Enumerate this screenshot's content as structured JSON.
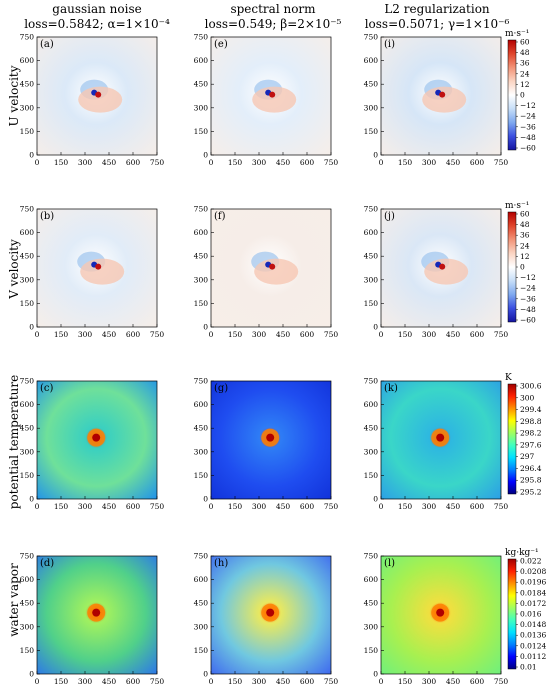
{
  "columns": [
    {
      "method": "gaussian noise",
      "loss": "loss=0.5842; α=1×10⁻⁴"
    },
    {
      "method": "spectral norm",
      "loss": "loss=0.549; β=2×10⁻⁵"
    },
    {
      "method": "L2 regularization",
      "loss": "loss=0.5071; γ=1×10⁻⁶"
    }
  ],
  "rows": [
    {
      "label": "U velocity",
      "unit": "m·s⁻¹",
      "panels": [
        "(a)",
        "(e)",
        "(i)"
      ],
      "colorbar_ticks": [
        "60",
        "48",
        "36",
        "24",
        "12",
        "0",
        "−12",
        "−24",
        "−36",
        "−48",
        "−60"
      ],
      "colormap": "diverging"
    },
    {
      "label": "V velocity",
      "unit": "m·s⁻¹",
      "panels": [
        "(b)",
        "(f)",
        "(j)"
      ],
      "colorbar_ticks": [
        "60",
        "48",
        "36",
        "24",
        "12",
        "0",
        "−12",
        "−24",
        "−36",
        "−48",
        "−60"
      ],
      "colormap": "diverging"
    },
    {
      "label": "potential temperature",
      "unit": "K",
      "panels": [
        "(c)",
        "(g)",
        "(k)"
      ],
      "colorbar_ticks": [
        "300.6",
        "300",
        "299.4",
        "298.8",
        "298.2",
        "297.6",
        "297",
        "296.4",
        "295.8",
        "295.2"
      ],
      "colormap": "jet"
    },
    {
      "label": "water vapor",
      "unit": "kg·kg⁻¹",
      "panels": [
        "(d)",
        "(h)",
        "(l)"
      ],
      "colorbar_ticks": [
        "0.022",
        "0.0208",
        "0.0196",
        "0.0184",
        "0.0172",
        "0.016",
        "0.0148",
        "0.0136",
        "0.0124",
        "0.0112",
        "0.01"
      ],
      "colormap": "jet"
    }
  ],
  "chart_data": {
    "type": "heatmap",
    "layout": "4 rows x 3 columns of 2-D field maps with one colorbar per row",
    "x_ticks": [
      "0",
      "150",
      "300",
      "450",
      "600",
      "750"
    ],
    "y_ticks": [
      "0",
      "150",
      "300",
      "450",
      "600",
      "750"
    ],
    "xlim": [
      0,
      750
    ],
    "ylim": [
      0,
      750
    ],
    "vortex_center_approx": [
      370,
      390
    ],
    "colors": {
      "diverging_low": "#1414a0",
      "diverging_mid": "#ffffff",
      "diverging_high": "#b40000"
    }
  }
}
